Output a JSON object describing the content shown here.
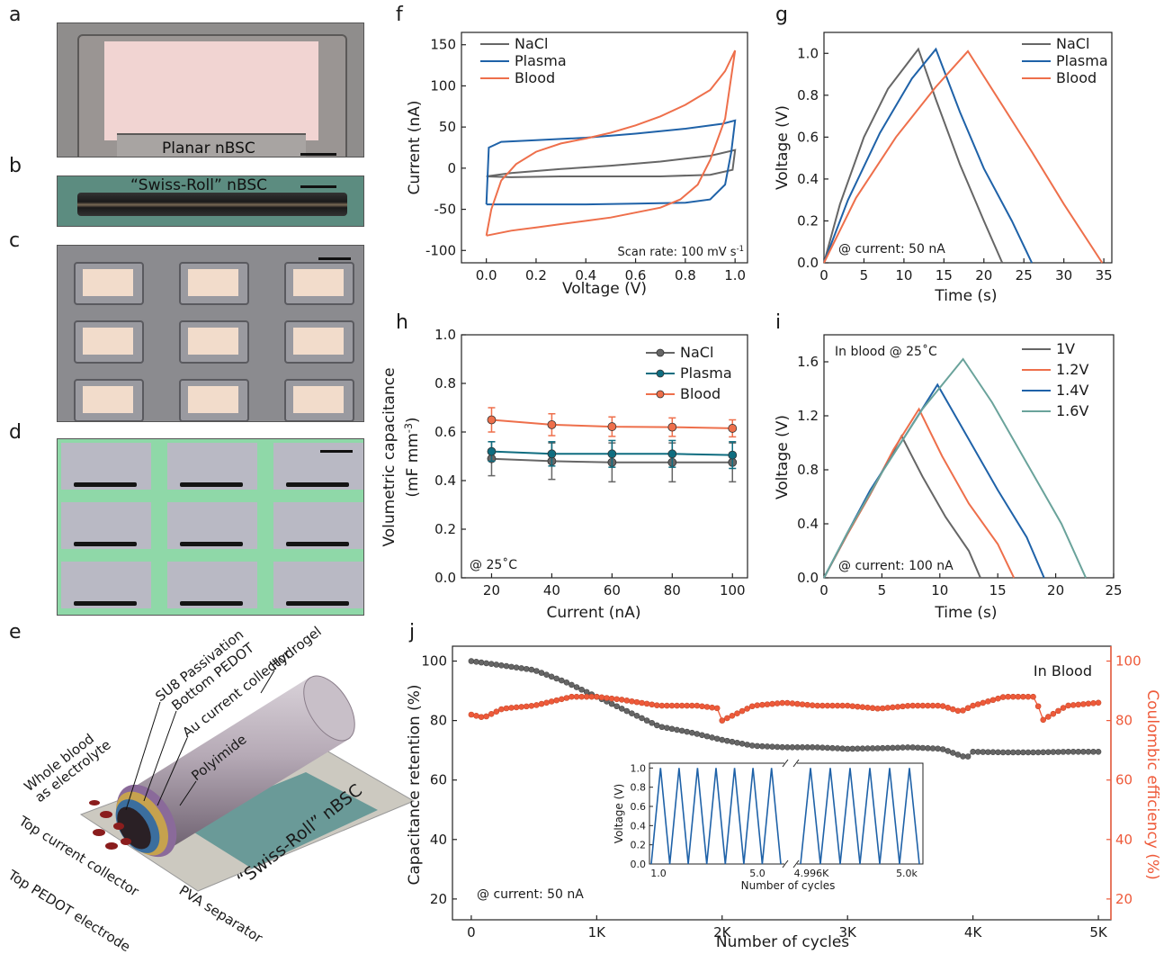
{
  "panel_labels": {
    "a": "a",
    "b": "b",
    "c": "c",
    "d": "d",
    "e": "e",
    "f": "f",
    "g": "g",
    "h": "h",
    "i": "i",
    "j": "j"
  },
  "photos": {
    "a_label": "Planar nBSC",
    "b_label": "“Swiss-Roll” nBSC"
  },
  "schematic_e": {
    "labels": [
      "SU8 Passivation",
      "Bottom PEDOT",
      "Au current collector",
      "Hydrogel",
      "Polyimide",
      "Whole blood\nas electrolyte",
      "Top current collector",
      "Top PEDOT electrode",
      "PVA separator",
      "“Swiss-Roll” nBSC"
    ]
  },
  "colors": {
    "nacl": "#666666",
    "plasma": "#1f62a8",
    "blood": "#ee6f4b",
    "v16": "#6aa39b",
    "plasma_h": "#0f6d80",
    "ce": "#ee5a3a"
  },
  "chart_data": [
    {
      "panel": "f",
      "type": "line",
      "xlabel": "Voltage (V)",
      "ylabel": "Current (nA)",
      "xlim": [
        -0.1,
        1.05
      ],
      "ylim": [
        -115,
        165
      ],
      "xticks": [
        0.0,
        0.2,
        0.4,
        0.6,
        0.8,
        1.0
      ],
      "xtick_labels": [
        "0.0",
        "0.2",
        "0.4",
        "0.6",
        "0.8",
        "1.0"
      ],
      "yticks": [
        -100,
        -50,
        0,
        50,
        100,
        150
      ],
      "ytick_labels": [
        "-100",
        "-50",
        "0",
        "50",
        "100",
        "150"
      ],
      "annotation": "Scan rate: 100 mV s-1",
      "legend": "top-left",
      "series": [
        {
          "name": "NaCl",
          "color": "#666666",
          "points": [
            [
              0,
              -10
            ],
            [
              0.1,
              -6
            ],
            [
              0.3,
              -1
            ],
            [
              0.5,
              3
            ],
            [
              0.7,
              8
            ],
            [
              0.9,
              15
            ],
            [
              1.0,
              22
            ],
            [
              0.99,
              -2
            ],
            [
              0.9,
              -8
            ],
            [
              0.7,
              -10
            ],
            [
              0.5,
              -10
            ],
            [
              0.3,
              -10
            ],
            [
              0.1,
              -11
            ],
            [
              0,
              -10
            ]
          ]
        },
        {
          "name": "Plasma",
          "color": "#1f62a8",
          "points": [
            [
              0,
              -44
            ],
            [
              0.01,
              25
            ],
            [
              0.06,
              32
            ],
            [
              0.2,
              34
            ],
            [
              0.4,
              37
            ],
            [
              0.6,
              42
            ],
            [
              0.8,
              48
            ],
            [
              0.95,
              54
            ],
            [
              1.0,
              58
            ],
            [
              0.985,
              20
            ],
            [
              0.96,
              -20
            ],
            [
              0.9,
              -38
            ],
            [
              0.8,
              -42
            ],
            [
              0.6,
              -43
            ],
            [
              0.4,
              -44
            ],
            [
              0.2,
              -44
            ],
            [
              0,
              -44
            ]
          ]
        },
        {
          "name": "Blood",
          "color": "#ee6f4b",
          "points": [
            [
              0,
              -82
            ],
            [
              0.02,
              -50
            ],
            [
              0.06,
              -15
            ],
            [
              0.12,
              5
            ],
            [
              0.2,
              20
            ],
            [
              0.3,
              30
            ],
            [
              0.4,
              36
            ],
            [
              0.5,
              43
            ],
            [
              0.6,
              52
            ],
            [
              0.7,
              63
            ],
            [
              0.8,
              77
            ],
            [
              0.9,
              95
            ],
            [
              0.96,
              118
            ],
            [
              1.0,
              143
            ],
            [
              0.96,
              60
            ],
            [
              0.9,
              10
            ],
            [
              0.85,
              -20
            ],
            [
              0.78,
              -38
            ],
            [
              0.7,
              -48
            ],
            [
              0.6,
              -54
            ],
            [
              0.5,
              -60
            ],
            [
              0.4,
              -64
            ],
            [
              0.3,
              -68
            ],
            [
              0.2,
              -72
            ],
            [
              0.1,
              -76
            ],
            [
              0,
              -82
            ]
          ]
        }
      ]
    },
    {
      "panel": "g",
      "type": "line",
      "xlabel": "Time (s)",
      "ylabel": "Voltage (V)",
      "xlim": [
        0,
        36
      ],
      "ylim": [
        0,
        1.1
      ],
      "xticks": [
        0,
        5,
        10,
        15,
        20,
        25,
        30,
        35
      ],
      "xtick_labels": [
        "0",
        "5",
        "10",
        "15",
        "20",
        "25",
        "30",
        "35"
      ],
      "yticks": [
        0,
        0.2,
        0.4,
        0.6,
        0.8,
        1.0
      ],
      "ytick_labels": [
        "0.0",
        "0.2",
        "0.4",
        "0.6",
        "0.8",
        "1.0"
      ],
      "annotation": "@ current: 50 nA",
      "legend": "top-right",
      "series": [
        {
          "name": "NaCl",
          "color": "#666666",
          "points": [
            [
              0,
              0
            ],
            [
              2,
              0.28
            ],
            [
              5,
              0.6
            ],
            [
              8,
              0.83
            ],
            [
              11.8,
              1.02
            ],
            [
              14,
              0.78
            ],
            [
              17,
              0.47
            ],
            [
              20,
              0.2
            ],
            [
              22.3,
              0
            ]
          ]
        },
        {
          "name": "Plasma",
          "color": "#1f62a8",
          "points": [
            [
              0,
              0
            ],
            [
              3,
              0.3
            ],
            [
              7,
              0.62
            ],
            [
              11,
              0.88
            ],
            [
              14,
              1.02
            ],
            [
              17,
              0.72
            ],
            [
              20,
              0.45
            ],
            [
              23.5,
              0.2
            ],
            [
              26,
              0
            ]
          ]
        },
        {
          "name": "Blood",
          "color": "#ee6f4b",
          "points": [
            [
              0,
              0
            ],
            [
              4,
              0.31
            ],
            [
              9,
              0.6
            ],
            [
              14,
              0.84
            ],
            [
              18,
              1.01
            ],
            [
              22,
              0.77
            ],
            [
              26,
              0.53
            ],
            [
              30,
              0.28
            ],
            [
              34.8,
              0
            ]
          ]
        }
      ]
    },
    {
      "panel": "h",
      "type": "line",
      "xlabel": "Current (nA)",
      "ylabel": "Volumetric capacitance",
      "ylabel2": "(mF mm-3)",
      "xlim": [
        10,
        105
      ],
      "ylim": [
        0,
        1.0
      ],
      "xticks": [
        20,
        40,
        60,
        80,
        100
      ],
      "xtick_labels": [
        "20",
        "40",
        "60",
        "80",
        "100"
      ],
      "yticks": [
        0,
        0.2,
        0.4,
        0.6,
        0.8,
        1.0
      ],
      "ytick_labels": [
        "0.0",
        "0.2",
        "0.4",
        "0.6",
        "0.8",
        "1.0"
      ],
      "annotation": "@ 25˚C",
      "legend": "top-right",
      "x": [
        20,
        40,
        60,
        80,
        100
      ],
      "series": [
        {
          "name": "NaCl",
          "color": "#666666",
          "values": [
            0.49,
            0.48,
            0.475,
            0.475,
            0.475
          ],
          "errors": [
            0.07,
            0.075,
            0.08,
            0.08,
            0.08
          ]
        },
        {
          "name": "Plasma",
          "color": "#0f6d80",
          "values": [
            0.52,
            0.51,
            0.51,
            0.51,
            0.505
          ],
          "errors": [
            0.04,
            0.05,
            0.055,
            0.055,
            0.055
          ]
        },
        {
          "name": "Blood",
          "color": "#ee6f4b",
          "values": [
            0.65,
            0.63,
            0.622,
            0.62,
            0.615
          ],
          "errors": [
            0.05,
            0.045,
            0.04,
            0.038,
            0.035
          ]
        }
      ]
    },
    {
      "panel": "i",
      "type": "line",
      "xlabel": "Time (s)",
      "ylabel": "Voltage (V)",
      "xlim": [
        0,
        25
      ],
      "ylim": [
        0,
        1.8
      ],
      "xticks": [
        0,
        5,
        10,
        15,
        20,
        25
      ],
      "xtick_labels": [
        "0",
        "5",
        "10",
        "15",
        "20",
        "25"
      ],
      "yticks": [
        0,
        0.4,
        0.8,
        1.2,
        1.6
      ],
      "ytick_labels": [
        "0.0",
        "0.4",
        "0.8",
        "1.2",
        "1.6"
      ],
      "annotation_top": "In blood @ 25˚C",
      "annotation": "@ current: 100 nA",
      "legend": "top-right",
      "series": [
        {
          "name": "1V",
          "color": "#666666",
          "points": [
            [
              0,
              0
            ],
            [
              2,
              0.32
            ],
            [
              4,
              0.62
            ],
            [
              6.7,
              1.05
            ],
            [
              8.5,
              0.75
            ],
            [
              10.5,
              0.45
            ],
            [
              12.5,
              0.2
            ],
            [
              13.5,
              0
            ]
          ]
        },
        {
          "name": "1.2V",
          "color": "#ee6f4b",
          "points": [
            [
              0,
              0
            ],
            [
              2,
              0.32
            ],
            [
              4,
              0.62
            ],
            [
              6,
              0.95
            ],
            [
              8.2,
              1.25
            ],
            [
              10.2,
              0.9
            ],
            [
              12.5,
              0.55
            ],
            [
              15,
              0.25
            ],
            [
              16.4,
              0
            ]
          ]
        },
        {
          "name": "1.4V",
          "color": "#1f62a8",
          "points": [
            [
              0,
              0
            ],
            [
              2,
              0.33
            ],
            [
              4,
              0.65
            ],
            [
              7,
              1.05
            ],
            [
              9.8,
              1.43
            ],
            [
              12,
              1.1
            ],
            [
              15,
              0.65
            ],
            [
              17.5,
              0.3
            ],
            [
              19,
              0
            ]
          ]
        },
        {
          "name": "1.6V",
          "color": "#6aa39b",
          "points": [
            [
              0,
              0
            ],
            [
              2,
              0.33
            ],
            [
              5,
              0.78
            ],
            [
              8.5,
              1.25
            ],
            [
              12,
              1.62
            ],
            [
              14.5,
              1.3
            ],
            [
              17.5,
              0.85
            ],
            [
              20.5,
              0.4
            ],
            [
              22.6,
              0
            ]
          ]
        }
      ]
    },
    {
      "panel": "j",
      "type": "line",
      "xlabel": "Number of cycles",
      "ylabel": "Capacitance retention (%)",
      "ylabel_right": "Coulombic efficiency (%)",
      "xlim": [
        -150,
        5100
      ],
      "ylim": [
        13,
        105
      ],
      "xticks": [
        0,
        1000,
        2000,
        3000,
        4000,
        5000
      ],
      "xtick_labels": [
        "0",
        "1K",
        "2K",
        "3K",
        "4K",
        "5K"
      ],
      "yticks": [
        20,
        40,
        60,
        80,
        100
      ],
      "ytick_labels": [
        "20",
        "40",
        "60",
        "80",
        "100"
      ],
      "ylim_right": [
        13,
        105
      ],
      "yticks_right": [
        20,
        40,
        60,
        80,
        100
      ],
      "ytick_labels_right": [
        "20",
        "40",
        "60",
        "80",
        "100"
      ],
      "annotation_top": "In Blood",
      "annotation": "@ current: 50 nA",
      "series": [
        {
          "name": "Capacitance retention",
          "color": "#666666",
          "x": [
            0,
            250,
            500,
            750,
            1000,
            1250,
            1500,
            1750,
            2000,
            2250,
            2500,
            2750,
            3000,
            3250,
            3500,
            3750,
            3950,
            4000,
            4250,
            4500,
            4750,
            5000
          ],
          "values": [
            100,
            98.5,
            97,
            93,
            88,
            83,
            78,
            76,
            73.5,
            71.5,
            71,
            71,
            70.5,
            70.7,
            71,
            70.5,
            67.5,
            69.5,
            69.3,
            69.3,
            69.5,
            69.5
          ]
        },
        {
          "name": "Coulombic efficiency",
          "color": "#ee5a3a",
          "x": [
            0,
            100,
            250,
            500,
            800,
            1000,
            1200,
            1500,
            1800,
            1990,
            2000,
            2250,
            2500,
            2750,
            3000,
            3250,
            3500,
            3750,
            3900,
            4000,
            4250,
            4500,
            4550,
            4750,
            5000
          ],
          "values": [
            82,
            81,
            84,
            85,
            88,
            88,
            87,
            85,
            85,
            84,
            80,
            85,
            86,
            85,
            85,
            84,
            85,
            85,
            83,
            85,
            88,
            88,
            80,
            85,
            86
          ]
        }
      ],
      "inset": {
        "xlabel": "Number of cycles",
        "ylabel": "Voltage (V)",
        "ylim": [
          0,
          1.05
        ],
        "yticks": [
          0,
          0.2,
          0.4,
          0.6,
          0.8,
          1.0
        ],
        "ytick_labels": [
          "0.0",
          "0.2",
          "0.4",
          "0.6",
          "0.8",
          "1.0"
        ],
        "xtick_labels": [
          "1.0",
          "5.0",
          "4.996K",
          "5.0k"
        ],
        "segments": [
          {
            "cycles": [
              1,
              5
            ],
            "peaks": 7
          },
          {
            "cycles": [
              4996,
              5000
            ],
            "peaks": 6
          }
        ],
        "color": "#1f62a8"
      }
    }
  ]
}
